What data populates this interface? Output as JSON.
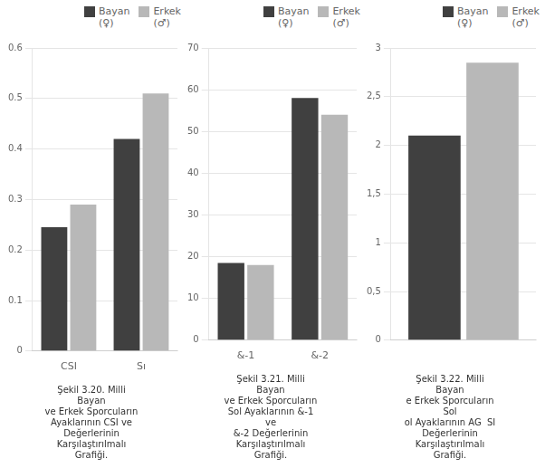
{
  "chart_data": [
    {
      "type": "bar",
      "title": "Şekil 3.20. Milli\nBayan\nve Erkek Sporcuların\nAyaklarının CSI ve\nDeğerlerinin\nKarşılaştırılmalı\nGrafiği.",
      "categories": [
        "CSI",
        "Sı"
      ],
      "series": [
        {
          "name": "Bayan\n(♀)",
          "color": "#404040",
          "values": [
            0.245,
            0.42
          ]
        },
        {
          "name": "Erkek\n(♂)",
          "color": "#b8b8b8",
          "values": [
            0.29,
            0.51
          ]
        }
      ],
      "ylim": [
        0,
        0.6
      ],
      "yticks": [
        0,
        0.1,
        0.2,
        0.3,
        0.4,
        0.5,
        0.6
      ],
      "grid": true,
      "legend": "upper right"
    },
    {
      "type": "bar",
      "title": "Şekil 3.21. Milli\nBayan\nve Erkek Sporcuların\nSol Ayaklarının &-1\nve\n&-2 Değerlerinin\nKarşılaştırılmalı\nGrafiği.",
      "categories": [
        "&-1",
        "&-2"
      ],
      "series": [
        {
          "name": "Bayan\n(♀)",
          "color": "#404040",
          "values": [
            18.5,
            58.0
          ]
        },
        {
          "name": "Erkek\n(♂)",
          "color": "#b8b8b8",
          "values": [
            18.0,
            54.0
          ]
        }
      ],
      "ylim": [
        0,
        70
      ],
      "yticks": [
        0,
        10,
        20,
        30,
        40,
        50,
        60,
        70
      ],
      "grid": true,
      "legend": "upper right"
    },
    {
      "type": "bar",
      "title": "Şekil 3.22. Milli\nBayan\ne Erkek Sporcuların\nSol\nol Ayaklarının AG  SI\nDeğerlerinin\nKarşılaştırılmalı\nGrafiği.",
      "categories": [
        null
      ],
      "series": [
        {
          "name": "Bayan\n(♀)",
          "color": "#404040",
          "values": [
            2.1
          ]
        },
        {
          "name": "Erkek\n(♂)",
          "color": "#b8b8b8",
          "values": [
            2.85
          ]
        }
      ],
      "ylim": [
        0,
        3
      ],
      "yticks": [
        0,
        {
          "value": 0.5,
          "label": "0,5"
        },
        1,
        {
          "value": 1.5,
          "label": "1,5"
        },
        2,
        {
          "value": 2.5,
          "label": "2,5"
        },
        3
      ],
      "grid": true,
      "legend": "upper right"
    }
  ]
}
